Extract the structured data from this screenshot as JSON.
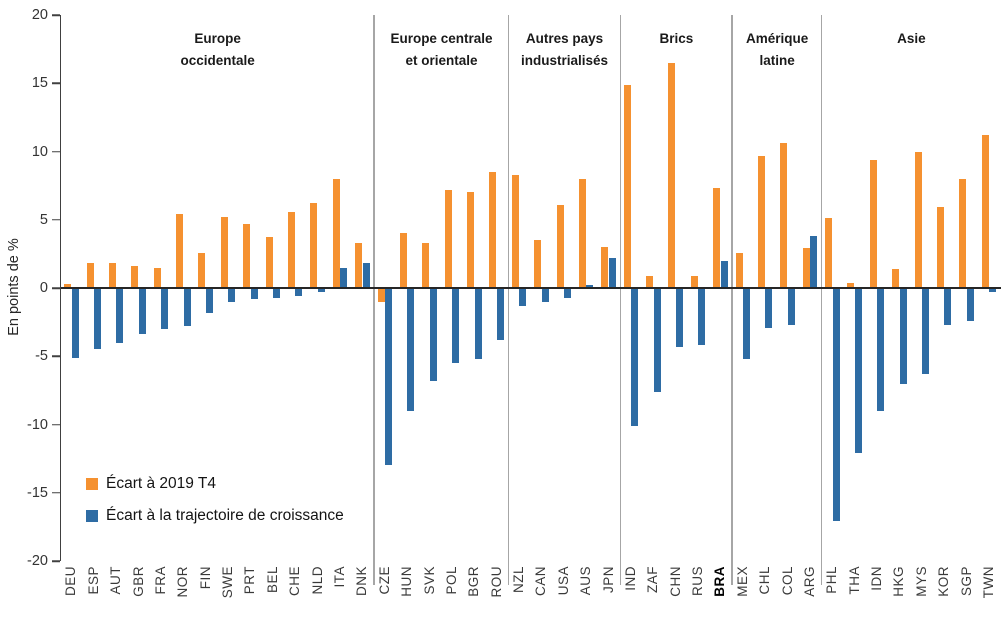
{
  "y_axis": {
    "title": "En points de %",
    "ticks": [
      20,
      15,
      10,
      5,
      0,
      -5,
      -10,
      -15,
      -20
    ]
  },
  "legend": [
    {
      "label": "Écart à 2019 T4",
      "color": "#F59130"
    },
    {
      "label": "Écart à la trajectoire de croissance",
      "color": "#2E6CA4"
    }
  ],
  "chart_data": {
    "type": "bar",
    "title": "",
    "ylabel": "En points de %",
    "ylim": [
      -20,
      20
    ],
    "ytick_step": 5,
    "grid": false,
    "legend_position": "inside-bottom-left",
    "series_names": [
      "Écart à 2019 T4",
      "Écart à la trajectoire de croissance"
    ],
    "series_colors": [
      "#F59130",
      "#2E6CA4"
    ],
    "separator_color": "#A6A6A6",
    "bold_x_labels": [
      "BRA"
    ],
    "groups": [
      {
        "label": "Europe occidentale",
        "label_lines": [
          "Europe",
          "occidentale"
        ],
        "countries": [
          "DEU",
          "ESP",
          "AUT",
          "GBR",
          "FRA",
          "NOR",
          "FIN",
          "SWE",
          "PRT",
          "BEL",
          "CHE",
          "NLD",
          "ITA",
          "DNK"
        ],
        "ecart_2019_t4": [
          0.3,
          1.8,
          1.8,
          1.6,
          1.5,
          5.4,
          2.6,
          5.2,
          4.7,
          3.7,
          5.6,
          6.2,
          8.0,
          3.3
        ],
        "ecart_trajectoire": [
          -5.1,
          -4.5,
          -4.0,
          -3.4,
          -3.0,
          -2.8,
          -1.8,
          -1.0,
          -0.8,
          -0.7,
          -0.6,
          -0.3,
          1.5,
          1.8
        ]
      },
      {
        "label": "Europe centrale et orientale",
        "label_lines": [
          "Europe centrale",
          "et orientale"
        ],
        "countries": [
          "CZE",
          "HUN",
          "SVK",
          "POL",
          "BGR",
          "ROU"
        ],
        "ecart_2019_t4": [
          -1.0,
          4.0,
          3.3,
          7.2,
          7.0,
          8.5
        ],
        "ecart_trajectoire": [
          -13.0,
          -9.0,
          -6.8,
          -5.5,
          -5.2,
          -3.8
        ]
      },
      {
        "label": "Autres pays industrialisés",
        "label_lines": [
          "Autres pays",
          "industrialisés"
        ],
        "countries": [
          "NZL",
          "CAN",
          "USA",
          "AUS",
          "JPN"
        ],
        "ecart_2019_t4": [
          8.3,
          3.5,
          6.1,
          8.0,
          3.0
        ],
        "ecart_trajectoire": [
          -1.3,
          -1.0,
          -0.7,
          0.2,
          2.2
        ]
      },
      {
        "label": "Brics",
        "label_lines": [
          "Brics"
        ],
        "countries": [
          "IND",
          "ZAF",
          "CHN",
          "RUS",
          "BRA"
        ],
        "ecart_2019_t4": [
          14.9,
          0.9,
          16.5,
          0.9,
          7.3
        ],
        "ecart_trajectoire": [
          -10.1,
          -7.6,
          -4.3,
          -4.2,
          2.0
        ]
      },
      {
        "label": "Amérique latine",
        "label_lines": [
          "Amérique",
          "latine"
        ],
        "countries": [
          "MEX",
          "CHL",
          "COL",
          "ARG"
        ],
        "ecart_2019_t4": [
          2.6,
          9.7,
          10.6,
          2.9
        ],
        "ecart_trajectoire": [
          -5.2,
          -2.9,
          -2.7,
          3.8
        ]
      },
      {
        "label": "Asie",
        "label_lines": [
          "Asie"
        ],
        "countries": [
          "PHL",
          "THA",
          "IDN",
          "HKG",
          "MYS",
          "KOR",
          "SGP",
          "TWN"
        ],
        "ecart_2019_t4": [
          5.1,
          0.4,
          9.4,
          1.4,
          10.0,
          5.9,
          8.0,
          11.2
        ],
        "ecart_trajectoire": [
          -17.1,
          -12.1,
          -9.0,
          -7.0,
          -6.3,
          -2.7,
          -2.4,
          -0.3
        ]
      }
    ]
  }
}
